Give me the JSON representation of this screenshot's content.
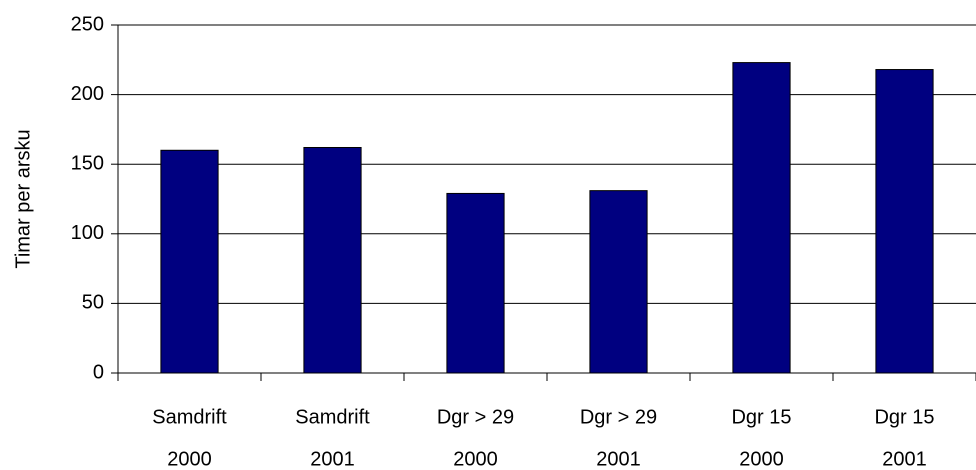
{
  "chart_data": {
    "type": "bar",
    "y_axis_label": "Timar per arsku",
    "categories": [
      [
        "Samdrift",
        "2000"
      ],
      [
        "Samdrift",
        "2001"
      ],
      [
        "Dgr > 29",
        "2000"
      ],
      [
        "Dgr > 29",
        "2001"
      ],
      [
        "Dgr 15",
        "2000"
      ],
      [
        "Dgr 15",
        "2001"
      ]
    ],
    "values": [
      160,
      162,
      129,
      131,
      223,
      218
    ],
    "color": "#000080",
    "ylim": [
      0,
      250
    ],
    "yticks": [
      0,
      50,
      100,
      150,
      200,
      250
    ],
    "grid": true
  }
}
